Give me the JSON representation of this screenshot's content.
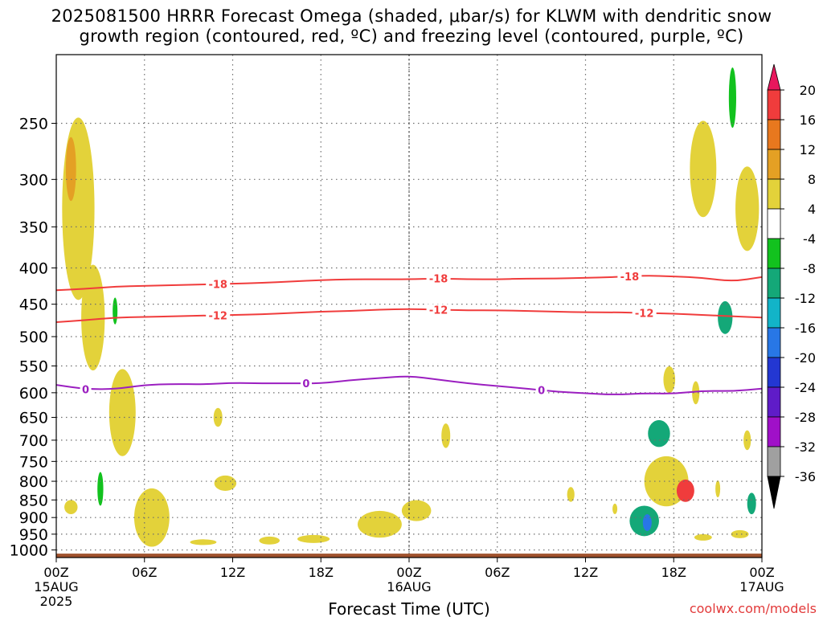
{
  "title_line1": "2025081500 HRRR Forecast Omega (shaded, μbar/s) for KLWM with dendritic snow",
  "title_line2": "growth region (contoured, red, ºC) and freezing level (contoured, purple, ºC)",
  "xlabel": "Forecast Time (UTC)",
  "credit": "coolwx.com/models",
  "colors": {
    "temp_contour": "#f03c3c",
    "freezing_contour": "#9b1fc0",
    "ground": "#a0522d",
    "grid": "#6e6e6e",
    "credit": "#e23a3a"
  },
  "chart_data": {
    "type": "heatmap",
    "x_ticks": [
      {
        "hour": 0,
        "label": "00Z",
        "sub1": "15AUG",
        "sub2": "2025"
      },
      {
        "hour": 6,
        "label": "06Z"
      },
      {
        "hour": 12,
        "label": "12Z"
      },
      {
        "hour": 18,
        "label": "18Z"
      },
      {
        "hour": 24,
        "label": "00Z",
        "sub1": "16AUG"
      },
      {
        "hour": 30,
        "label": "06Z"
      },
      {
        "hour": 36,
        "label": "12Z"
      },
      {
        "hour": 42,
        "label": "18Z"
      },
      {
        "hour": 48,
        "label": "00Z",
        "sub1": "17AUG"
      }
    ],
    "xlim": [
      0,
      48
    ],
    "y_ticks": [
      250,
      300,
      350,
      400,
      450,
      500,
      550,
      600,
      650,
      700,
      750,
      800,
      850,
      900,
      950,
      1000
    ],
    "ylim": [
      200,
      1025
    ],
    "y_scale": "log",
    "y_reversed": true,
    "colorbar": {
      "labels": [
        20,
        16,
        12,
        8,
        4,
        -4,
        -8,
        -12,
        -16,
        -20,
        -24,
        -28,
        -32,
        -36
      ],
      "colors": [
        "#e8175d",
        "#f03c3c",
        "#e8781e",
        "#e4a024",
        "#e3d23a",
        "#ffffff",
        "#12c21e",
        "#14a878",
        "#12b4c8",
        "#2877e6",
        "#2337d2",
        "#5f1cc8",
        "#a010c8",
        "#a0a0a0",
        "#000000"
      ]
    },
    "contours": [
      {
        "level": -18,
        "color": "red",
        "labels_at_hours": [
          11,
          26,
          39
        ],
        "points": [
          [
            0,
            430
          ],
          [
            2,
            428
          ],
          [
            4,
            425
          ],
          [
            6,
            424
          ],
          [
            8,
            423
          ],
          [
            10,
            422
          ],
          [
            12,
            421
          ],
          [
            14,
            420
          ],
          [
            16,
            418
          ],
          [
            18,
            416
          ],
          [
            20,
            415
          ],
          [
            22,
            415
          ],
          [
            24,
            415
          ],
          [
            26,
            414
          ],
          [
            28,
            415
          ],
          [
            30,
            415
          ],
          [
            32,
            414
          ],
          [
            34,
            414
          ],
          [
            36,
            413
          ],
          [
            38,
            412
          ],
          [
            40,
            410
          ],
          [
            42,
            411
          ],
          [
            44,
            413
          ],
          [
            46,
            418
          ],
          [
            48,
            412
          ]
        ]
      },
      {
        "level": -12,
        "color": "red",
        "labels_at_hours": [
          11,
          26,
          40
        ],
        "points": [
          [
            0,
            477
          ],
          [
            2,
            474
          ],
          [
            4,
            470
          ],
          [
            6,
            469
          ],
          [
            8,
            468
          ],
          [
            10,
            467
          ],
          [
            12,
            466
          ],
          [
            14,
            465
          ],
          [
            16,
            463
          ],
          [
            18,
            461
          ],
          [
            20,
            460
          ],
          [
            22,
            458
          ],
          [
            24,
            457
          ],
          [
            26,
            458
          ],
          [
            28,
            459
          ],
          [
            30,
            459
          ],
          [
            32,
            460
          ],
          [
            34,
            461
          ],
          [
            36,
            462
          ],
          [
            38,
            462
          ],
          [
            40,
            463
          ],
          [
            42,
            464
          ],
          [
            44,
            466
          ],
          [
            46,
            468
          ],
          [
            48,
            470
          ]
        ]
      },
      {
        "level": 0,
        "color": "purple",
        "labels_at_hours": [
          2,
          17,
          33
        ],
        "points": [
          [
            0,
            585
          ],
          [
            2,
            593
          ],
          [
            4,
            593
          ],
          [
            6,
            585
          ],
          [
            8,
            583
          ],
          [
            10,
            584
          ],
          [
            12,
            581
          ],
          [
            14,
            582
          ],
          [
            16,
            582
          ],
          [
            18,
            582
          ],
          [
            20,
            576
          ],
          [
            22,
            572
          ],
          [
            24,
            568
          ],
          [
            26,
            575
          ],
          [
            28,
            582
          ],
          [
            30,
            587
          ],
          [
            32,
            592
          ],
          [
            34,
            598
          ],
          [
            36,
            601
          ],
          [
            38,
            604
          ],
          [
            40,
            601
          ],
          [
            42,
            602
          ],
          [
            44,
            596
          ],
          [
            46,
            597
          ],
          [
            48,
            592
          ]
        ]
      }
    ],
    "omega_regions": [
      {
        "value": 4,
        "center": [
          1.5,
          330
        ],
        "size": [
          2.2,
          190
        ]
      },
      {
        "value": 4,
        "center": [
          2.5,
          470
        ],
        "size": [
          1.6,
          160
        ]
      },
      {
        "value": 8,
        "center": [
          1.0,
          290
        ],
        "size": [
          0.7,
          60
        ]
      },
      {
        "value": 4,
        "center": [
          4.5,
          640
        ],
        "size": [
          1.8,
          180
        ]
      },
      {
        "value": 4,
        "center": [
          6.5,
          900
        ],
        "size": [
          2.4,
          170
        ]
      },
      {
        "value": 4,
        "center": [
          1.0,
          870
        ],
        "size": [
          0.9,
          40
        ]
      },
      {
        "value": -4,
        "center": [
          3.0,
          820
        ],
        "size": [
          0.4,
          90
        ]
      },
      {
        "value": -4,
        "center": [
          4.0,
          460
        ],
        "size": [
          0.3,
          40
        ]
      },
      {
        "value": 4,
        "center": [
          11.5,
          805
        ],
        "size": [
          1.5,
          40
        ]
      },
      {
        "value": 4,
        "center": [
          11.0,
          650
        ],
        "size": [
          0.6,
          40
        ]
      },
      {
        "value": 4,
        "center": [
          10.0,
          975
        ],
        "size": [
          1.8,
          18
        ]
      },
      {
        "value": 4,
        "center": [
          14.5,
          970
        ],
        "size": [
          1.4,
          25
        ]
      },
      {
        "value": 4,
        "center": [
          17.5,
          965
        ],
        "size": [
          2.2,
          25
        ]
      },
      {
        "value": 4,
        "center": [
          22.0,
          920
        ],
        "size": [
          3.0,
          80
        ]
      },
      {
        "value": 4,
        "center": [
          24.5,
          880
        ],
        "size": [
          2.0,
          60
        ]
      },
      {
        "value": 4,
        "center": [
          26.5,
          690
        ],
        "size": [
          0.6,
          55
        ]
      },
      {
        "value": 4,
        "center": [
          35.0,
          835
        ],
        "size": [
          0.5,
          40
        ]
      },
      {
        "value": 4,
        "center": [
          41.5,
          800
        ],
        "size": [
          3.0,
          130
        ]
      },
      {
        "value": 16,
        "center": [
          42.8,
          825
        ],
        "size": [
          1.2,
          60
        ]
      },
      {
        "value": -8,
        "center": [
          41.0,
          685
        ],
        "size": [
          1.5,
          60
        ]
      },
      {
        "value": -8,
        "center": [
          40.0,
          910
        ],
        "size": [
          2.0,
          90
        ]
      },
      {
        "value": -16,
        "center": [
          40.2,
          915
        ],
        "size": [
          0.6,
          50
        ]
      },
      {
        "value": 4,
        "center": [
          41.7,
          575
        ],
        "size": [
          0.8,
          50
        ]
      },
      {
        "value": 4,
        "center": [
          43.5,
          600
        ],
        "size": [
          0.5,
          45
        ]
      },
      {
        "value": 4,
        "center": [
          44.0,
          290
        ],
        "size": [
          1.8,
          90
        ]
      },
      {
        "value": 4,
        "center": [
          47.0,
          330
        ],
        "size": [
          1.6,
          90
        ]
      },
      {
        "value": -8,
        "center": [
          45.5,
          470
        ],
        "size": [
          1.0,
          50
        ]
      },
      {
        "value": -8,
        "center": [
          47.3,
          860
        ],
        "size": [
          0.6,
          60
        ]
      },
      {
        "value": 4,
        "center": [
          47.0,
          700
        ],
        "size": [
          0.5,
          45
        ]
      },
      {
        "value": 4,
        "center": [
          46.5,
          950
        ],
        "size": [
          1.2,
          25
        ]
      },
      {
        "value": 4,
        "center": [
          44.0,
          960
        ],
        "size": [
          1.2,
          20
        ]
      },
      {
        "value": 4,
        "center": [
          38.0,
          875
        ],
        "size": [
          0.3,
          30
        ]
      },
      {
        "value": 4,
        "center": [
          45.0,
          820
        ],
        "size": [
          0.3,
          45
        ]
      },
      {
        "value": -4,
        "center": [
          46.0,
          230
        ],
        "size": [
          0.5,
          45
        ]
      }
    ]
  }
}
